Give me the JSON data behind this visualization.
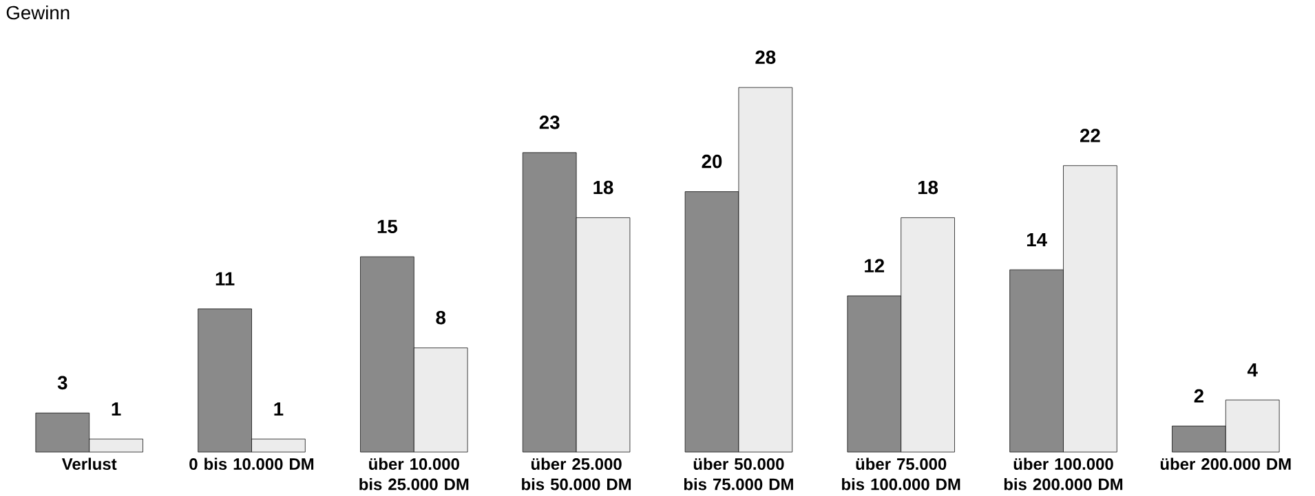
{
  "chart_data": {
    "type": "bar",
    "title": "Gewinn",
    "categories": [
      "Verlust",
      "0 bis 10.000 DM",
      "über 10.000 bis 25.000 DM",
      "über 25.000 bis 50.000 DM",
      "über 50.000 bis 75.000 DM",
      "über 75.000 bis 100.000 DM",
      "über 100.000 bis 200.000 DM",
      "über 200.000 DM"
    ],
    "series": [
      {
        "color": "#8a8a8a",
        "values": [
          3,
          11,
          15,
          23,
          20,
          12,
          14,
          2
        ]
      },
      {
        "color": "#ececec",
        "values": [
          1,
          1,
          8,
          18,
          28,
          18,
          22,
          4
        ]
      }
    ],
    "data_labels": true
  }
}
